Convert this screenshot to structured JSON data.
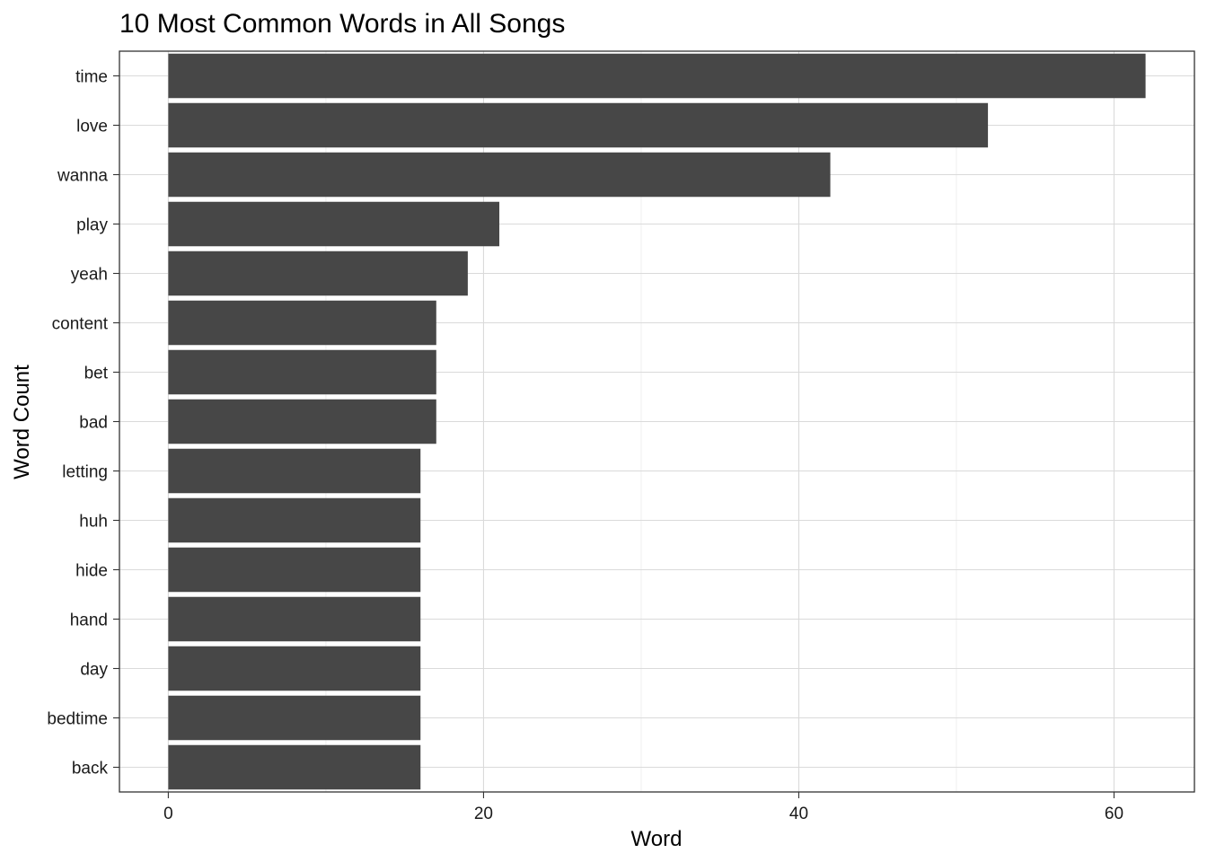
{
  "chart_data": {
    "type": "bar",
    "orientation": "horizontal",
    "title": "10 Most Common Words in All Songs",
    "xlabel": "Word",
    "ylabel": "Word Count",
    "categories": [
      "time",
      "love",
      "wanna",
      "play",
      "yeah",
      "content",
      "bet",
      "bad",
      "letting",
      "huh",
      "hide",
      "hand",
      "day",
      "bedtime",
      "back"
    ],
    "values": [
      62,
      52,
      42,
      21,
      19,
      17,
      17,
      17,
      16,
      16,
      16,
      16,
      16,
      16,
      16
    ],
    "x_ticks": [
      0,
      20,
      40,
      60
    ],
    "xlim": [
      -3.1,
      65.1
    ],
    "grid": true,
    "bar_color": "#474747",
    "grid_color": "#dadada",
    "panel_border_color": "#333333"
  }
}
